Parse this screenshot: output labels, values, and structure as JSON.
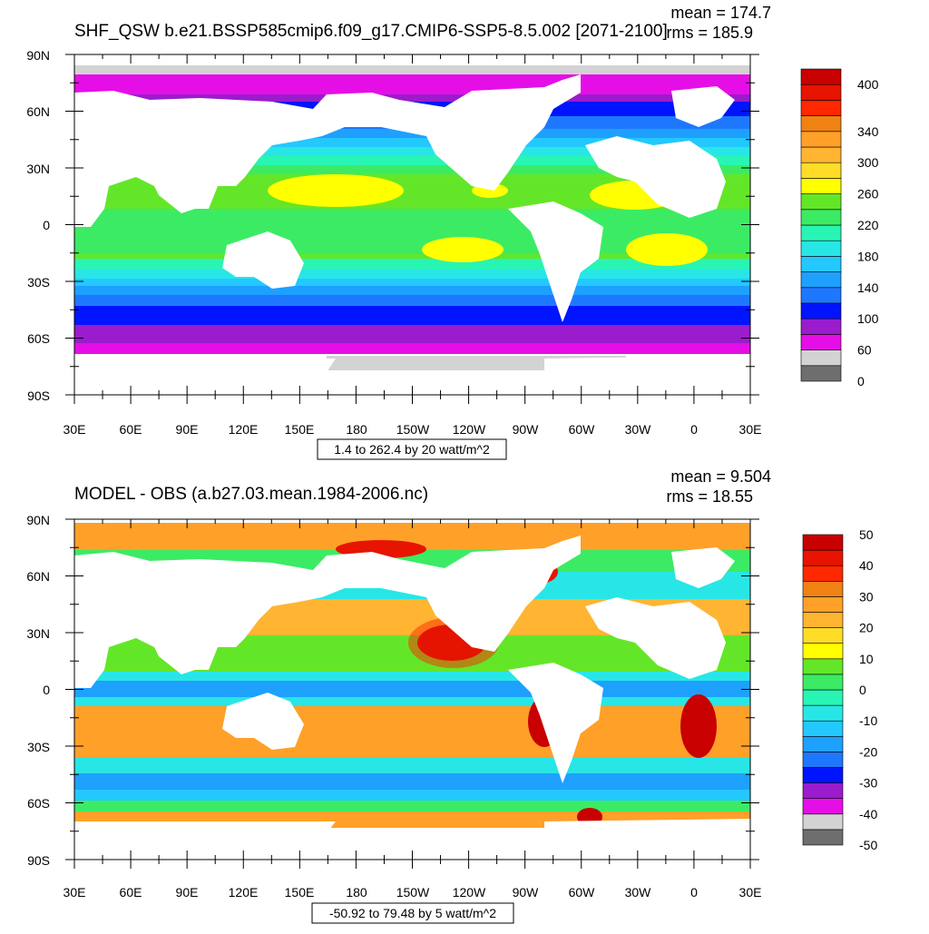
{
  "panels": [
    {
      "title": "SHF_QSW b.e21.BSSP585cmip6.f09_g17.CMIP6-SSP5-8.5.002 [2071-2100]",
      "mean_text": "mean = 174.7",
      "rms_text": "rms = 185.9",
      "range_text": "1.4 to 262.4 by 20 watt/m^2",
      "lat_labels": [
        "90N",
        "60N",
        "30N",
        "0",
        "30S",
        "60S",
        "90S"
      ],
      "lon_labels": [
        "30E",
        "60E",
        "90E",
        "120E",
        "150E",
        "180",
        "150W",
        "120W",
        "90W",
        "60W",
        "30W",
        "0",
        "30E"
      ],
      "colorbar": {
        "colors": [
          "#6e6e6e",
          "#d3d3d3",
          "#e60ee6",
          "#9a1ccc",
          "#0014ff",
          "#1e78ff",
          "#1ea0ff",
          "#23c8ff",
          "#28e6e6",
          "#28f5b4",
          "#3ceb64",
          "#64e628",
          "#ffff00",
          "#ffdc28",
          "#ffb432",
          "#ffa028",
          "#f08214",
          "#ff2800",
          "#e61400",
          "#c80000"
        ],
        "labels": [
          "0",
          "60",
          "100",
          "140",
          "180",
          "220",
          "260",
          "300",
          "340",
          "400"
        ],
        "label_positions": [
          0,
          2,
          4,
          6,
          8,
          10,
          12,
          14,
          16,
          19
        ]
      }
    },
    {
      "title": "MODEL - OBS (a.b27.03.mean.1984-2006.nc)",
      "mean_text": "mean = 9.504",
      "rms_text": "rms = 18.55",
      "range_text": "-50.92 to 79.48 by 5 watt/m^2",
      "lat_labels": [
        "90N",
        "60N",
        "30N",
        "0",
        "30S",
        "60S",
        "90S"
      ],
      "lon_labels": [
        "30E",
        "60E",
        "90E",
        "120E",
        "150E",
        "180",
        "150W",
        "120W",
        "90W",
        "60W",
        "30W",
        "0",
        "30E"
      ],
      "colorbar": {
        "colors": [
          "#6e6e6e",
          "#d3d3d3",
          "#e60ee6",
          "#9a1ccc",
          "#0014ff",
          "#1e78ff",
          "#1ea0ff",
          "#23c8ff",
          "#28e6e6",
          "#28f5b4",
          "#3ceb64",
          "#64e628",
          "#ffff00",
          "#ffdc28",
          "#ffb432",
          "#ffa028",
          "#f08214",
          "#ff2800",
          "#e61400",
          "#c80000"
        ],
        "labels": [
          "-50",
          "-40",
          "-30",
          "-20",
          "-10",
          "0",
          "10",
          "20",
          "30",
          "40",
          "50"
        ],
        "label_positions": [
          0,
          2,
          4,
          6,
          8,
          10,
          12,
          14,
          16,
          18,
          20
        ]
      }
    }
  ]
}
